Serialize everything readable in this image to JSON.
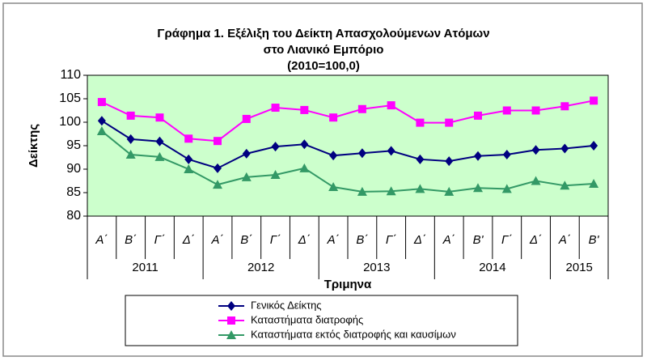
{
  "chart_data": {
    "type": "line",
    "title": "Γράφημα 1. Εξέλιξη του Δείκτη Απασχολούμενων Ατόμων",
    "subtitle": "στο Λιανικό Εμπόριο",
    "note": "(2010=100,0)",
    "y_label": "Δείκτης",
    "x_label": "Τριμηνα",
    "categories": [
      "Α΄",
      "Β΄",
      "Γ΄",
      "Δ΄",
      "Α΄",
      "Β΄",
      "Γ΄",
      "Δ΄",
      "Α΄",
      "Β΄",
      "Γ΄",
      "Δ΄",
      "Α΄",
      "Β'",
      "Γ΄",
      "Δ΄",
      "Α΄",
      "Β'"
    ],
    "years": [
      "2011",
      "2011",
      "2011",
      "2011",
      "2012",
      "2012",
      "2012",
      "2012",
      "2013",
      "2013",
      "2013",
      "2013",
      "2014",
      "2014",
      "2014",
      "2014",
      "2015",
      "2015"
    ],
    "ylim": [
      80,
      110
    ],
    "yticks": [
      80,
      85,
      90,
      95,
      100,
      105,
      110
    ],
    "plot_background": "#ccffcc",
    "series": [
      {
        "name": "Γενικός Δείκτης",
        "color": "#000080",
        "marker": "diamond",
        "values": [
          100.3,
          96.4,
          95.9,
          92.1,
          90.2,
          93.3,
          94.8,
          95.3,
          92.9,
          93.4,
          93.9,
          92.1,
          91.7,
          92.8,
          93.1,
          94.1,
          94.4,
          95.0
        ]
      },
      {
        "name": "Καταστήματα διατροφής",
        "color": "#ff00ff",
        "marker": "square",
        "values": [
          104.3,
          101.4,
          101.0,
          96.5,
          96.0,
          100.7,
          103.1,
          102.6,
          101.0,
          102.8,
          103.6,
          99.9,
          99.9,
          101.4,
          102.5,
          102.5,
          103.4,
          104.6
        ]
      },
      {
        "name": "Καταστήματα εκτός διατροφής και καυσίμων",
        "color": "#339966",
        "marker": "triangle",
        "values": [
          98.1,
          93.1,
          92.6,
          90.0,
          86.7,
          88.3,
          88.8,
          90.2,
          86.2,
          85.2,
          85.3,
          85.8,
          85.2,
          86.0,
          85.8,
          87.5,
          86.5,
          86.9
        ]
      }
    ]
  }
}
